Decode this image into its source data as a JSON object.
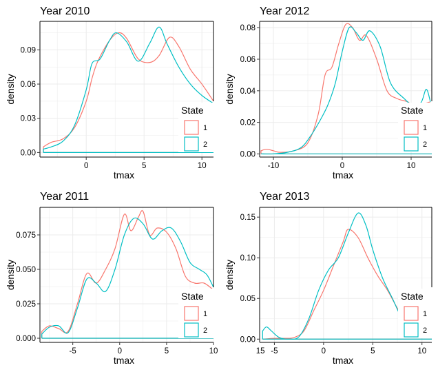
{
  "colors": {
    "state1": "#F8766D",
    "state2": "#00BFC4",
    "grid": "#EBEBEB"
  },
  "legend": {
    "title": "State",
    "labels": [
      "1",
      "2"
    ]
  },
  "chart_data": [
    {
      "type": "line",
      "title": "Year 2010",
      "xlabel": "tmax",
      "ylabel": "density",
      "xlim": [
        -4,
        11
      ],
      "ylim": [
        -0.004,
        0.115
      ],
      "xticks": [
        0,
        5,
        10
      ],
      "yticks": [
        0,
        0.03,
        0.06,
        0.09
      ],
      "ytick_labels": [
        "0.00",
        "0.03",
        "0.06",
        "0.09"
      ],
      "legend_position": "right",
      "series": [
        {
          "name": "1",
          "points": [
            [
              -3.7,
              0.005
            ],
            [
              -3,
              0.009
            ],
            [
              -2,
              0.012
            ],
            [
              -1,
              0.022
            ],
            [
              0,
              0.045
            ],
            [
              0.5,
              0.065
            ],
            [
              1,
              0.08
            ],
            [
              2,
              0.098
            ],
            [
              2.8,
              0.105
            ],
            [
              3.5,
              0.1
            ],
            [
              4.5,
              0.082
            ],
            [
              5.5,
              0.079
            ],
            [
              6.3,
              0.085
            ],
            [
              7.2,
              0.101
            ],
            [
              8,
              0.093
            ],
            [
              9,
              0.073
            ],
            [
              10,
              0.06
            ],
            [
              11,
              0.045
            ]
          ]
        },
        {
          "name": "2",
          "points": [
            [
              -3.7,
              0.003
            ],
            [
              -3,
              0.005
            ],
            [
              -2,
              0.01
            ],
            [
              -1,
              0.024
            ],
            [
              0,
              0.055
            ],
            [
              0.5,
              0.078
            ],
            [
              1.2,
              0.082
            ],
            [
              2,
              0.098
            ],
            [
              2.6,
              0.105
            ],
            [
              3.5,
              0.097
            ],
            [
              4.5,
              0.08
            ],
            [
              5.5,
              0.096
            ],
            [
              6.3,
              0.11
            ],
            [
              7,
              0.095
            ],
            [
              8,
              0.075
            ],
            [
              9,
              0.06
            ],
            [
              10,
              0.05
            ],
            [
              11,
              0.043
            ]
          ]
        }
      ]
    },
    {
      "type": "line",
      "title": "Year 2012",
      "xlabel": "tmax",
      "ylabel": "density",
      "xlim": [
        -12,
        13
      ],
      "ylim": [
        -0.002,
        0.084
      ],
      "xticks": [
        -10,
        0,
        10
      ],
      "yticks": [
        0,
        0.02,
        0.04,
        0.06,
        0.08
      ],
      "ytick_labels": [
        "0.00",
        "0.02",
        "0.04",
        "0.06",
        "0.08"
      ],
      "legend_position": "right",
      "series": [
        {
          "name": "1",
          "points": [
            [
              -11.8,
              0.002
            ],
            [
              -11,
              0.003
            ],
            [
              -10,
              0.002
            ],
            [
              -9,
              0.001
            ],
            [
              -7,
              0.002
            ],
            [
              -5,
              0.007
            ],
            [
              -3.5,
              0.025
            ],
            [
              -2.5,
              0.05
            ],
            [
              -1.5,
              0.055
            ],
            [
              -0.5,
              0.07
            ],
            [
              0.5,
              0.082
            ],
            [
              1.5,
              0.08
            ],
            [
              2.5,
              0.072
            ],
            [
              3.5,
              0.075
            ],
            [
              5,
              0.06
            ],
            [
              6.5,
              0.04
            ],
            [
              8,
              0.035
            ],
            [
              9.5,
              0.033
            ],
            [
              10.5,
              0.03
            ],
            [
              12,
              0.032
            ],
            [
              12.8,
              0.033
            ]
          ]
        },
        {
          "name": "2",
          "points": [
            [
              -11.8,
              0.0
            ],
            [
              -10,
              0.0
            ],
            [
              -8,
              0.001
            ],
            [
              -6,
              0.004
            ],
            [
              -4.5,
              0.012
            ],
            [
              -3,
              0.023
            ],
            [
              -2,
              0.032
            ],
            [
              -1,
              0.045
            ],
            [
              0,
              0.065
            ],
            [
              1,
              0.08
            ],
            [
              2,
              0.077
            ],
            [
              3,
              0.072
            ],
            [
              4,
              0.078
            ],
            [
              5.5,
              0.068
            ],
            [
              7,
              0.045
            ],
            [
              9,
              0.035
            ],
            [
              10.5,
              0.03
            ],
            [
              11.5,
              0.033
            ],
            [
              12.2,
              0.041
            ],
            [
              12.8,
              0.033
            ]
          ]
        }
      ]
    },
    {
      "type": "line",
      "title": "Year 2011",
      "xlabel": "tmax",
      "ylabel": "density",
      "xlim": [
        -8.5,
        10
      ],
      "ylim": [
        -0.003,
        0.095
      ],
      "xticks": [
        -5,
        0,
        5,
        10,
        15
      ],
      "yticks": [
        0,
        0.025,
        0.05,
        0.075
      ],
      "ytick_labels": [
        "0.000",
        "0.025",
        "0.050",
        "0.075"
      ],
      "legend_position": "right",
      "series": [
        {
          "name": "1",
          "points": [
            [
              -8.3,
              0.005
            ],
            [
              -7.5,
              0.009
            ],
            [
              -6.5,
              0.007
            ],
            [
              -5.5,
              0.005
            ],
            [
              -4.5,
              0.025
            ],
            [
              -3.5,
              0.047
            ],
            [
              -2.5,
              0.04
            ],
            [
              -1.5,
              0.05
            ],
            [
              -0.5,
              0.065
            ],
            [
              0.5,
              0.09
            ],
            [
              1.2,
              0.078
            ],
            [
              2,
              0.088
            ],
            [
              2.5,
              0.092
            ],
            [
              3.2,
              0.075
            ],
            [
              4,
              0.08
            ],
            [
              5,
              0.077
            ],
            [
              6,
              0.065
            ],
            [
              7,
              0.045
            ],
            [
              8,
              0.04
            ],
            [
              9,
              0.04
            ],
            [
              10,
              0.035
            ]
          ]
        },
        {
          "name": "2",
          "points": [
            [
              -8.3,
              0.003
            ],
            [
              -7.5,
              0.008
            ],
            [
              -6.5,
              0.009
            ],
            [
              -5.5,
              0.004
            ],
            [
              -4.5,
              0.022
            ],
            [
              -3.5,
              0.043
            ],
            [
              -2.5,
              0.04
            ],
            [
              -1.5,
              0.034
            ],
            [
              -0.5,
              0.05
            ],
            [
              0.5,
              0.075
            ],
            [
              1.5,
              0.087
            ],
            [
              2.5,
              0.083
            ],
            [
              3.5,
              0.072
            ],
            [
              4.5,
              0.078
            ],
            [
              5.5,
              0.08
            ],
            [
              6.5,
              0.07
            ],
            [
              7.5,
              0.055
            ],
            [
              8.5,
              0.05
            ],
            [
              9.3,
              0.046
            ],
            [
              10,
              0.037
            ]
          ]
        }
      ]
    },
    {
      "type": "line",
      "title": "Year 2013",
      "xlabel": "tmax",
      "ylabel": "density",
      "xlim": [
        -6.5,
        11
      ],
      "ylim": [
        -0.004,
        0.162
      ],
      "xticks": [
        -5,
        0,
        5,
        10,
        15
      ],
      "yticks": [
        0,
        0.05,
        0.1,
        0.15
      ],
      "ytick_labels": [
        "0.00",
        "0.05",
        "0.10",
        "0.15"
      ],
      "legend_position": "right",
      "series": [
        {
          "name": "1",
          "points": [
            [
              -6.2,
              0.0
            ],
            [
              -5,
              0.001
            ],
            [
              -4,
              0.001
            ],
            [
              -3,
              0.002
            ],
            [
              -2,
              0.01
            ],
            [
              -1,
              0.035
            ],
            [
              0,
              0.06
            ],
            [
              1,
              0.09
            ],
            [
              2,
              0.12
            ],
            [
              2.5,
              0.135
            ],
            [
              3.5,
              0.125
            ],
            [
              4.5,
              0.1
            ],
            [
              5.5,
              0.078
            ],
            [
              6.5,
              0.06
            ],
            [
              7.5,
              0.038
            ],
            [
              8.5,
              0.02
            ],
            [
              9.5,
              0.02
            ],
            [
              10.3,
              0.025
            ],
            [
              11,
              0.018
            ]
          ]
        },
        {
          "name": "2",
          "points": [
            [
              -6.2,
              0.01
            ],
            [
              -5.8,
              0.015
            ],
            [
              -5.3,
              0.01
            ],
            [
              -4.5,
              0.002
            ],
            [
              -3.5,
              0.0
            ],
            [
              -2.5,
              0.003
            ],
            [
              -1.5,
              0.025
            ],
            [
              -0.5,
              0.06
            ],
            [
              0.5,
              0.085
            ],
            [
              1.5,
              0.1
            ],
            [
              2.5,
              0.13
            ],
            [
              3.5,
              0.155
            ],
            [
              4.3,
              0.14
            ],
            [
              5,
              0.11
            ],
            [
              6,
              0.075
            ],
            [
              7,
              0.05
            ],
            [
              8,
              0.025
            ],
            [
              9,
              0.015
            ],
            [
              10,
              0.023
            ],
            [
              11,
              0.015
            ]
          ]
        }
      ]
    }
  ]
}
